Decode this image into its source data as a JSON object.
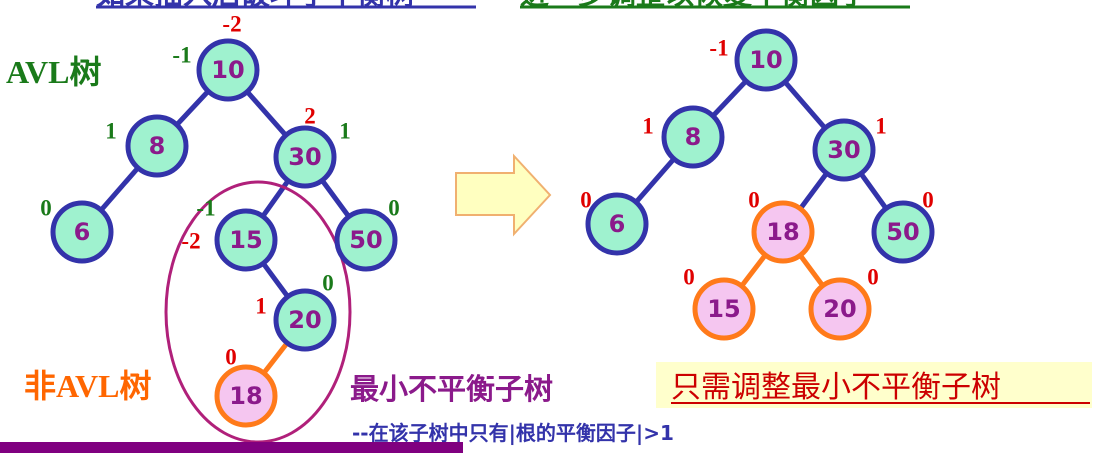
{
  "colors": {
    "node_fill": "#9ff2cf",
    "node_stroke": "#3333aa",
    "new_node_fill": "#f5c6f0",
    "new_node_stroke": "#ff7a1a",
    "node_text": "#8b1a8b",
    "bf_red": "#e00000",
    "bf_green": "#1a7a1a",
    "edge_blue": "#3333aa",
    "edge_orange": "#ff7a1a",
    "ellipse": "#b0207a",
    "title_green": "#1a7a1a",
    "title_orange": "#ff6600",
    "caption_purple": "#8b1a8b",
    "caption_blue": "#3333aa",
    "caption_red": "#cc0000",
    "highlight_bg": "#ffffcc",
    "arrow_fill": "#ffffc0",
    "arrow_stroke": "#f0b070",
    "bar_purple": "#800080",
    "header_blue": "#3333aa",
    "header_green": "#1a7a1a"
  },
  "header": {
    "left_text": "如果插入后破坏了平衡树",
    "right_text": "进一步调整以恢复平衡因子"
  },
  "left_tree": {
    "title": "AVL树",
    "nodes": [
      {
        "key": "10",
        "bf_above": "-2",
        "bf_side": "-1"
      },
      {
        "key": "8",
        "bf": "1"
      },
      {
        "key": "30",
        "bf_top": "2",
        "bf_side": "1"
      },
      {
        "key": "6",
        "bf": "0"
      },
      {
        "key": "15",
        "bf_top": "-1",
        "bf_side": "-2"
      },
      {
        "key": "50",
        "bf": "0"
      },
      {
        "key": "20",
        "bf_top": "0",
        "bf_side": "1"
      },
      {
        "key": "18",
        "bf": "0"
      }
    ],
    "non_avl_label": "非AVL树"
  },
  "right_tree": {
    "nodes": [
      {
        "key": "10",
        "bf": "-1"
      },
      {
        "key": "8",
        "bf": "1"
      },
      {
        "key": "30",
        "bf": "1"
      },
      {
        "key": "6",
        "bf": "0"
      },
      {
        "key": "18",
        "bf": "0"
      },
      {
        "key": "50",
        "bf": "0"
      },
      {
        "key": "15",
        "bf": "0"
      },
      {
        "key": "20",
        "bf": "0"
      }
    ]
  },
  "captions": {
    "min_unbalanced": "最小不平衡子树",
    "note": "--在该子树中只有|根的平衡因子|>1",
    "adjust_only": "只需调整最小不平衡子树"
  }
}
